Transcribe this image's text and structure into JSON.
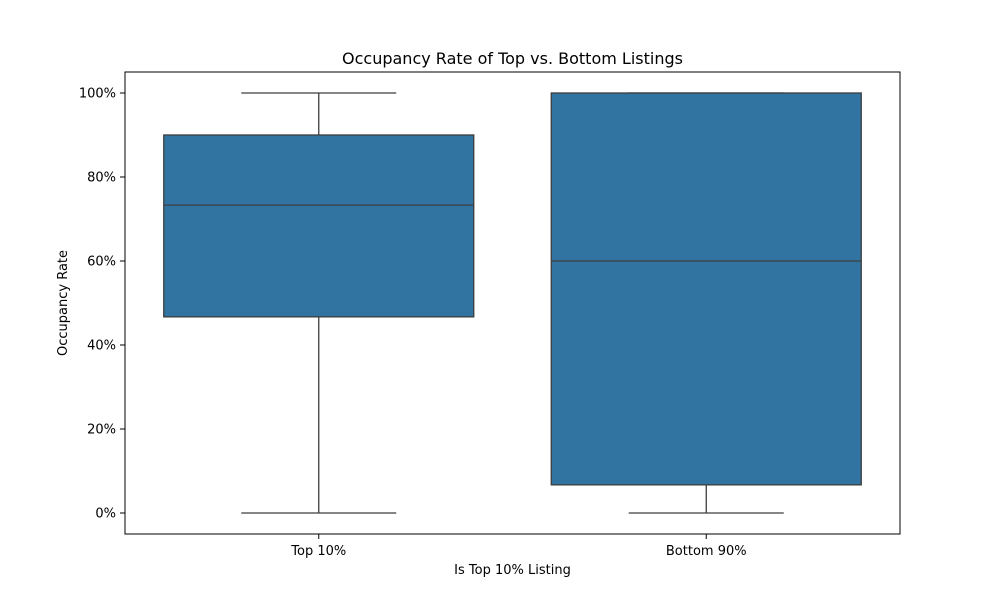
{
  "chart_data": {
    "type": "box",
    "title": "Occupancy Rate of Top vs. Bottom Listings",
    "xlabel": "Is Top 10% Listing",
    "ylabel": "Occupancy Rate",
    "categories": [
      "Top 10%",
      "Bottom 90%"
    ],
    "boxes": [
      {
        "category": "Top 10%",
        "min": 0.0,
        "q1": 0.467,
        "median": 0.733,
        "q3": 0.9,
        "max": 1.0
      },
      {
        "category": "Bottom 90%",
        "min": 0.0,
        "q1": 0.067,
        "median": 0.6,
        "q3": 1.0,
        "max": 1.0
      }
    ],
    "ylim": [
      -0.05,
      1.05
    ],
    "yticks": [
      0,
      0.2,
      0.4,
      0.6,
      0.8,
      1.0
    ],
    "ytick_labels": [
      "0%",
      "20%",
      "40%",
      "60%",
      "80%",
      "100%"
    ],
    "grid": false,
    "box_color": "#3274a1",
    "line_color": "#3d3d3d"
  }
}
